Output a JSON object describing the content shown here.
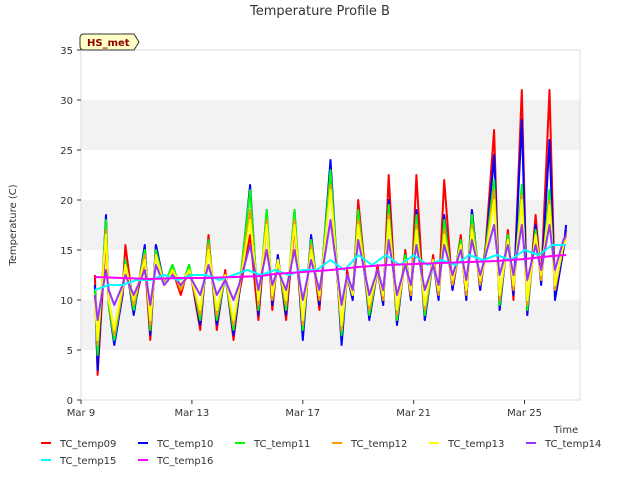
{
  "chart_data": {
    "type": "line",
    "title": "Temperature Profile B",
    "xlabel": "Time",
    "ylabel": "Temperature (C)",
    "xlim": [
      0,
      18
    ],
    "ylim": [
      0,
      35
    ],
    "yticks": [
      0,
      5,
      10,
      15,
      20,
      25,
      30,
      35
    ],
    "xticks": [
      {
        "value": 0,
        "label": "Mar 9"
      },
      {
        "value": 4,
        "label": "Mar 13"
      },
      {
        "value": 8,
        "label": "Mar 17"
      },
      {
        "value": 12,
        "label": "Mar 21"
      },
      {
        "value": 16,
        "label": "Mar 25"
      }
    ],
    "grid": "horizontal bands",
    "legend_position": "bottom",
    "site_badge": "HS_met",
    "series": [
      {
        "name": "TC_temp09",
        "color": "#ff0000",
        "x": [
          0.5,
          0.6,
          0.9,
          1.0,
          1.2,
          1.5,
          1.6,
          1.9,
          2.3,
          2.5,
          2.7,
          3.0,
          3.3,
          3.6,
          3.9,
          4.3,
          4.6,
          4.9,
          5.2,
          5.5,
          5.7,
          6.1,
          6.4,
          6.7,
          6.9,
          7.1,
          7.4,
          7.7,
          8.0,
          8.3,
          8.6,
          9.0,
          9.4,
          9.6,
          9.8,
          10.0,
          10.4,
          10.7,
          10.9,
          11.1,
          11.4,
          11.7,
          11.9,
          12.1,
          12.4,
          12.7,
          12.9,
          13.1,
          13.4,
          13.7,
          13.9,
          14.1,
          14.4,
          14.6,
          14.9,
          15.1,
          15.4,
          15.6,
          15.9,
          16.1,
          16.4,
          16.6,
          16.9,
          17.1,
          17.4,
          17.5
        ],
        "y": [
          12.5,
          2.5,
          16.5,
          10.0,
          6.0,
          11.0,
          15.5,
          9.0,
          14.0,
          6.0,
          15.5,
          11.5,
          13.0,
          10.5,
          13.5,
          7.0,
          16.5,
          7.0,
          13.0,
          6.0,
          10.5,
          16.5,
          8.0,
          18.0,
          9.0,
          14.5,
          8.0,
          17.5,
          6.5,
          16.0,
          9.0,
          23.0,
          6.0,
          13.0,
          10.0,
          20.0,
          8.5,
          13.5,
          9.5,
          22.5,
          7.5,
          15.0,
          10.0,
          22.5,
          8.0,
          14.5,
          10.5,
          22.0,
          11.0,
          16.5,
          10.0,
          19.0,
          11.0,
          15.5,
          27.0,
          9.0,
          17.0,
          10.0,
          31.0,
          8.5,
          18.5,
          12.0,
          31.0,
          10.5,
          15.5,
          17.0
        ]
      },
      {
        "name": "TC_temp10",
        "color": "#0000ff",
        "x": [
          0.5,
          0.6,
          0.9,
          1.0,
          1.2,
          1.5,
          1.6,
          1.9,
          2.3,
          2.5,
          2.7,
          3.0,
          3.3,
          3.6,
          3.9,
          4.3,
          4.6,
          4.9,
          5.2,
          5.5,
          5.7,
          6.1,
          6.4,
          6.7,
          6.9,
          7.1,
          7.4,
          7.7,
          8.0,
          8.3,
          8.6,
          9.0,
          9.4,
          9.6,
          9.8,
          10.0,
          10.4,
          10.7,
          10.9,
          11.1,
          11.4,
          11.7,
          11.9,
          12.1,
          12.4,
          12.7,
          12.9,
          13.1,
          13.4,
          13.7,
          13.9,
          14.1,
          14.4,
          14.6,
          14.9,
          15.1,
          15.4,
          15.6,
          15.9,
          16.1,
          16.4,
          16.6,
          16.9,
          17.1,
          17.4,
          17.5
        ],
        "y": [
          11.5,
          3.0,
          18.5,
          9.5,
          5.5,
          10.5,
          14.0,
          8.5,
          15.5,
          6.5,
          15.5,
          11.5,
          13.5,
          11.0,
          13.5,
          7.5,
          16.0,
          7.5,
          12.5,
          6.5,
          10.5,
          21.5,
          8.5,
          19.0,
          9.5,
          14.5,
          8.5,
          19.0,
          6.0,
          16.5,
          9.5,
          24.0,
          5.5,
          12.5,
          10.0,
          19.0,
          8.0,
          13.0,
          9.5,
          20.0,
          7.5,
          14.5,
          10.0,
          19.0,
          8.0,
          14.0,
          10.0,
          18.5,
          11.0,
          16.0,
          10.0,
          19.0,
          11.0,
          15.0,
          24.5,
          9.0,
          16.5,
          10.5,
          28.0,
          8.5,
          17.5,
          11.5,
          26.0,
          10.0,
          15.0,
          17.5
        ]
      },
      {
        "name": "TC_temp11",
        "color": "#00ff00",
        "x": [
          0.5,
          0.6,
          0.9,
          1.0,
          1.2,
          1.5,
          1.6,
          1.9,
          2.3,
          2.5,
          2.7,
          3.0,
          3.3,
          3.6,
          3.9,
          4.3,
          4.6,
          4.9,
          5.2,
          5.5,
          5.7,
          6.1,
          6.4,
          6.7,
          6.9,
          7.1,
          7.4,
          7.7,
          8.0,
          8.3,
          8.6,
          9.0,
          9.4,
          9.6,
          9.8,
          10.0,
          10.4,
          10.7,
          10.9,
          11.1,
          11.4,
          11.7,
          11.9,
          12.1,
          12.4,
          12.7,
          12.9,
          13.1,
          13.4,
          13.7,
          13.9,
          14.1,
          14.4,
          14.6,
          14.9,
          15.1,
          15.4,
          15.6,
          15.9,
          16.1,
          16.4,
          16.6,
          16.9,
          17.1,
          17.4,
          17.5
        ],
        "y": [
          11.0,
          4.5,
          18.0,
          9.5,
          6.0,
          11.0,
          14.0,
          9.0,
          15.0,
          7.0,
          15.0,
          11.5,
          13.5,
          11.0,
          13.5,
          8.0,
          16.0,
          8.0,
          12.5,
          7.0,
          11.0,
          21.0,
          9.0,
          19.0,
          10.0,
          14.0,
          9.0,
          19.0,
          7.0,
          16.0,
          10.0,
          23.0,
          6.5,
          12.5,
          10.5,
          19.0,
          8.5,
          13.0,
          10.0,
          19.5,
          8.0,
          14.5,
          10.5,
          18.5,
          8.5,
          14.0,
          10.5,
          18.0,
          11.5,
          16.0,
          10.5,
          18.5,
          11.5,
          15.0,
          22.0,
          9.5,
          16.5,
          11.0,
          21.5,
          9.0,
          17.0,
          12.0,
          21.0,
          11.0,
          15.5,
          16.5
        ]
      },
      {
        "name": "TC_temp12",
        "color": "#ff9900",
        "x": [
          0.5,
          0.6,
          0.9,
          1.0,
          1.2,
          1.5,
          1.6,
          1.9,
          2.3,
          2.5,
          2.7,
          3.0,
          3.3,
          3.6,
          3.9,
          4.3,
          4.6,
          4.9,
          5.2,
          5.5,
          5.7,
          6.1,
          6.4,
          6.7,
          6.9,
          7.1,
          7.4,
          7.7,
          8.0,
          8.3,
          8.6,
          9.0,
          9.4,
          9.6,
          9.8,
          10.0,
          10.4,
          10.7,
          10.9,
          11.1,
          11.4,
          11.7,
          11.9,
          12.1,
          12.4,
          12.7,
          12.9,
          13.1,
          13.4,
          13.7,
          13.9,
          14.1,
          14.4,
          14.6,
          14.9,
          15.1,
          15.4,
          15.6,
          15.9,
          16.1,
          16.4,
          16.6,
          16.9,
          17.1,
          17.4,
          17.5
        ],
        "y": [
          10.5,
          5.5,
          17.0,
          10.0,
          6.5,
          11.0,
          13.5,
          9.5,
          14.5,
          7.5,
          14.5,
          11.5,
          13.0,
          11.0,
          13.0,
          8.5,
          15.5,
          8.5,
          12.5,
          7.5,
          11.0,
          19.0,
          9.5,
          18.0,
          10.0,
          14.0,
          9.5,
          18.0,
          7.5,
          15.5,
          10.0,
          21.5,
          7.0,
          12.5,
          10.5,
          18.0,
          9.0,
          13.0,
          10.0,
          18.5,
          8.5,
          14.0,
          10.5,
          17.5,
          9.0,
          14.0,
          10.5,
          17.0,
          11.5,
          15.5,
          10.5,
          17.5,
          11.5,
          14.5,
          21.0,
          10.0,
          16.0,
          11.0,
          20.5,
          9.5,
          16.5,
          12.0,
          20.0,
          11.0,
          15.5,
          16.5
        ]
      },
      {
        "name": "TC_temp13",
        "color": "#ffff00",
        "x": [
          0.5,
          0.6,
          0.9,
          1.0,
          1.2,
          1.5,
          1.6,
          1.9,
          2.3,
          2.5,
          2.7,
          3.0,
          3.3,
          3.6,
          3.9,
          4.3,
          4.6,
          4.9,
          5.2,
          5.5,
          5.7,
          6.1,
          6.4,
          6.7,
          6.9,
          7.1,
          7.4,
          7.7,
          8.0,
          8.3,
          8.6,
          9.0,
          9.4,
          9.6,
          9.8,
          10.0,
          10.4,
          10.7,
          10.9,
          11.1,
          11.4,
          11.7,
          11.9,
          12.1,
          12.4,
          12.7,
          12.9,
          13.1,
          13.4,
          13.7,
          13.9,
          14.1,
          14.4,
          14.6,
          14.9,
          15.1,
          15.4,
          15.6,
          15.9,
          16.1,
          16.4,
          16.6,
          16.9,
          17.1,
          17.4,
          17.5
        ],
        "y": [
          10.0,
          6.0,
          16.5,
          10.0,
          7.0,
          11.5,
          13.5,
          10.0,
          14.0,
          8.0,
          14.5,
          11.5,
          13.0,
          11.5,
          13.0,
          9.0,
          15.0,
          9.0,
          12.5,
          8.0,
          11.0,
          18.0,
          10.0,
          17.5,
          10.5,
          14.0,
          10.0,
          17.5,
          8.0,
          15.0,
          10.5,
          21.0,
          7.5,
          12.5,
          10.5,
          17.5,
          9.5,
          13.0,
          10.5,
          18.0,
          9.0,
          14.0,
          11.0,
          17.0,
          9.5,
          14.0,
          11.0,
          16.5,
          12.0,
          15.5,
          11.0,
          17.0,
          12.0,
          14.5,
          20.0,
          10.5,
          16.0,
          11.5,
          20.0,
          10.0,
          16.5,
          12.5,
          19.5,
          11.5,
          15.5,
          16.0
        ]
      },
      {
        "name": "TC_temp14",
        "color": "#9933ff",
        "x": [
          0.5,
          0.6,
          0.9,
          1.0,
          1.2,
          1.5,
          1.6,
          1.9,
          2.3,
          2.5,
          2.7,
          3.0,
          3.3,
          3.6,
          3.9,
          4.3,
          4.6,
          4.9,
          5.2,
          5.5,
          5.7,
          6.1,
          6.4,
          6.7,
          6.9,
          7.1,
          7.4,
          7.7,
          8.0,
          8.3,
          8.6,
          9.0,
          9.4,
          9.6,
          9.8,
          10.0,
          10.4,
          10.7,
          10.9,
          11.1,
          11.4,
          11.7,
          11.9,
          12.1,
          12.4,
          12.7,
          12.9,
          13.1,
          13.4,
          13.7,
          13.9,
          14.1,
          14.4,
          14.6,
          14.9,
          15.1,
          15.4,
          15.6,
          15.9,
          16.1,
          16.4,
          16.6,
          16.9,
          17.1,
          17.4,
          17.5
        ],
        "y": [
          10.5,
          8.0,
          13.0,
          11.0,
          9.5,
          11.5,
          12.5,
          10.5,
          13.0,
          9.5,
          13.5,
          11.5,
          12.5,
          11.5,
          12.5,
          10.5,
          13.5,
          10.5,
          12.0,
          10.0,
          11.5,
          15.5,
          11.0,
          15.0,
          11.5,
          13.0,
          11.0,
          15.0,
          10.0,
          14.0,
          11.0,
          18.0,
          9.5,
          12.5,
          11.0,
          16.0,
          10.5,
          13.0,
          11.0,
          16.0,
          10.5,
          13.5,
          11.5,
          15.5,
          11.0,
          13.5,
          11.5,
          15.5,
          12.5,
          15.0,
          12.0,
          16.0,
          12.5,
          14.5,
          17.5,
          12.5,
          15.5,
          12.5,
          17.5,
          12.0,
          15.5,
          13.0,
          17.5,
          13.0,
          16.0,
          16.5
        ]
      },
      {
        "name": "TC_temp15",
        "color": "#00ffff",
        "x": [
          0.5,
          1.0,
          1.5,
          2.0,
          2.5,
          3.0,
          3.5,
          4.0,
          4.5,
          5.0,
          5.5,
          6.0,
          6.5,
          7.0,
          7.5,
          8.0,
          8.5,
          9.0,
          9.5,
          10.0,
          10.5,
          11.0,
          11.5,
          12.0,
          12.5,
          13.0,
          13.5,
          14.0,
          14.5,
          15.0,
          15.5,
          16.0,
          16.5,
          17.0,
          17.5
        ],
        "y": [
          11.0,
          11.5,
          11.5,
          12.0,
          12.0,
          12.5,
          12.0,
          12.5,
          12.5,
          12.0,
          12.5,
          13.0,
          12.5,
          13.0,
          12.5,
          13.0,
          13.0,
          14.0,
          13.0,
          14.5,
          13.5,
          14.5,
          13.5,
          14.5,
          13.5,
          14.0,
          13.5,
          14.5,
          14.0,
          14.5,
          14.0,
          15.0,
          14.5,
          15.5,
          15.5
        ]
      },
      {
        "name": "TC_temp16",
        "color": "#ff00ff",
        "x": [
          0.5,
          1.5,
          2.5,
          3.5,
          4.5,
          5.5,
          6.5,
          7.0,
          8.0,
          9.0,
          10.0,
          11.0,
          12.0,
          13.0,
          14.0,
          15.0,
          16.0,
          17.0,
          17.5
        ],
        "y": [
          12.3,
          12.2,
          12.1,
          12.2,
          12.2,
          12.3,
          12.4,
          12.6,
          12.8,
          13.0,
          13.3,
          13.5,
          13.6,
          13.7,
          13.8,
          13.9,
          14.1,
          14.4,
          14.5
        ]
      }
    ]
  }
}
